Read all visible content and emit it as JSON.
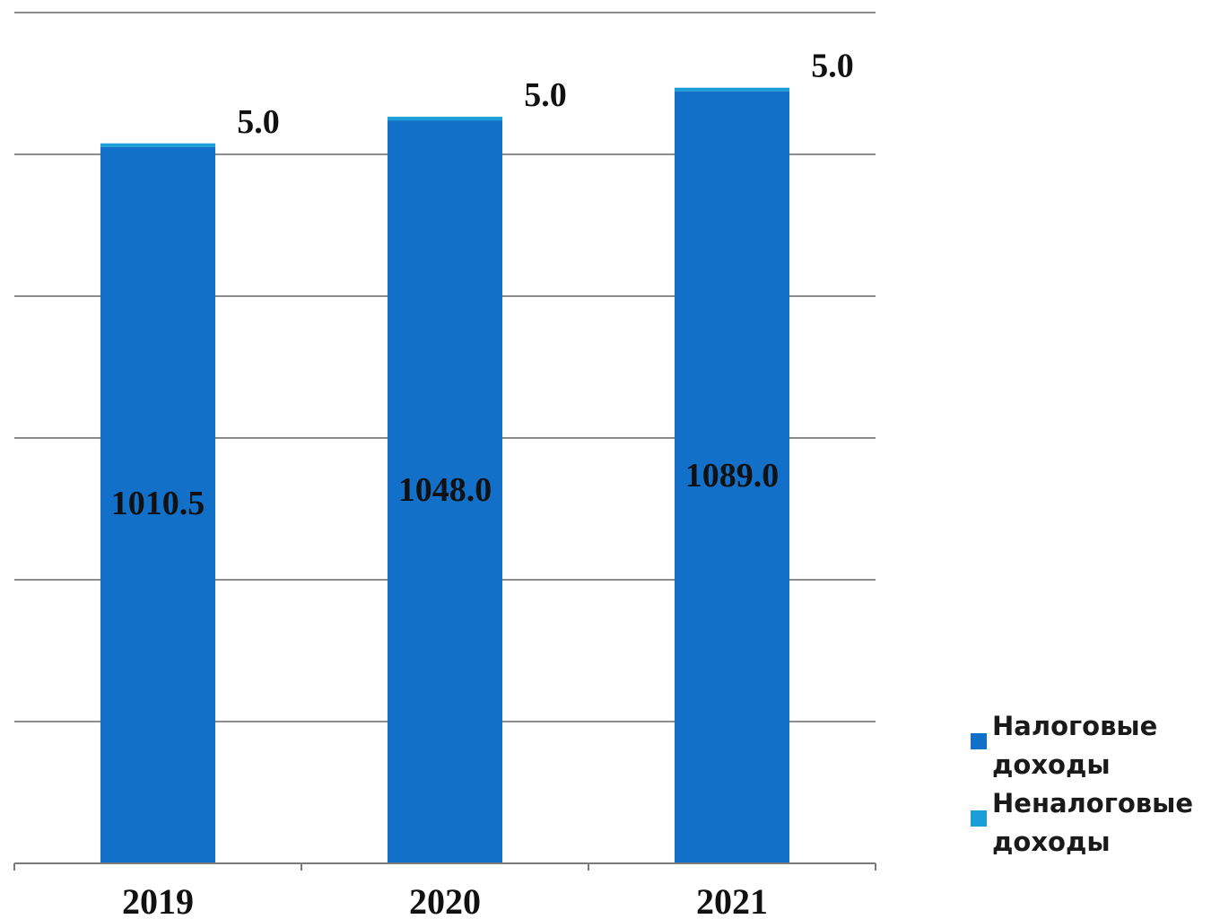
{
  "chart_data": {
    "type": "bar",
    "stacked": true,
    "title": "",
    "xlabel": "",
    "ylabel": "",
    "categories": [
      "2019",
      "2020",
      "2021"
    ],
    "series": [
      {
        "name": "Налоговые доходы",
        "values": [
          1010.5,
          1048.0,
          1089.0
        ],
        "color": "#1270c8"
      },
      {
        "name": "Неналоговые доходы",
        "values": [
          5.0,
          5.0,
          5.0
        ],
        "color": "#1a9ed8"
      }
    ],
    "ylim": [
      0,
      1200
    ],
    "grid": true,
    "legend_position": "bottom-right"
  }
}
